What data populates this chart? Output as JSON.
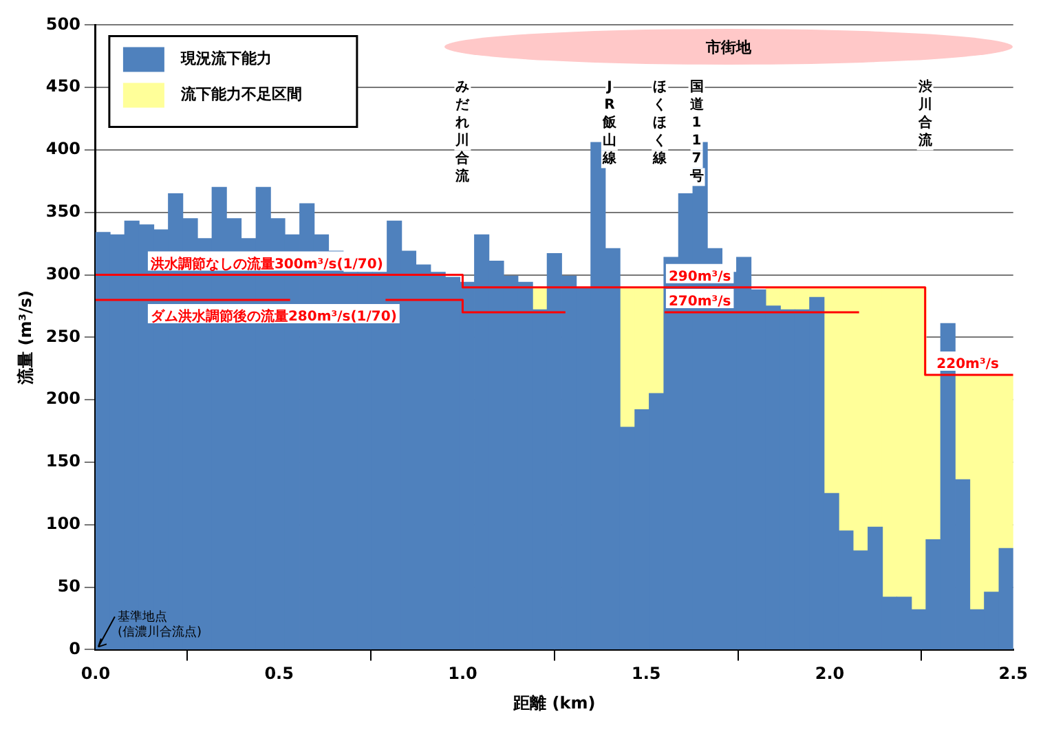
{
  "chart_data": {
    "type": "bar",
    "xlabel": "距離 (km)",
    "ylabel": "流量 (m³/s)",
    "x": [
      0.02,
      0.06,
      0.099,
      0.139,
      0.179,
      0.218,
      0.258,
      0.298,
      0.337,
      0.377,
      0.417,
      0.457,
      0.496,
      0.536,
      0.576,
      0.615,
      0.655,
      0.695,
      0.734,
      0.774,
      0.814,
      0.853,
      0.893,
      0.933,
      0.973,
      1.012,
      1.052,
      1.092,
      1.131,
      1.171,
      1.211,
      1.25,
      1.29,
      1.33,
      1.369,
      1.409,
      1.449,
      1.489,
      1.528,
      1.568,
      1.608,
      1.647,
      1.687,
      1.727,
      1.766,
      1.806,
      1.846,
      1.885,
      1.925,
      1.965,
      2.005,
      2.044,
      2.084,
      2.124,
      2.163,
      2.203,
      2.243,
      2.282,
      2.322,
      2.362,
      2.401,
      2.441,
      2.481
    ],
    "stacked": true,
    "series": [
      {
        "name": "現況流下能力",
        "color": "#4f81bd",
        "values": [
          334,
          332,
          343,
          340,
          336,
          365,
          345,
          329,
          370,
          345,
          329,
          370,
          345,
          332,
          357,
          332,
          319,
          302,
          302,
          302,
          343,
          319,
          308,
          302,
          298,
          294,
          332,
          311,
          299,
          294,
          272,
          317,
          299,
          289,
          406,
          321,
          178,
          192,
          205,
          314,
          365,
          406,
          321,
          302,
          314,
          288,
          275,
          272,
          272,
          282,
          125,
          95,
          79,
          98,
          42,
          42,
          32,
          88,
          261,
          136,
          32,
          46,
          81
        ]
      },
      {
        "name": "流下能力不足区間",
        "color": "#ffff99",
        "values": [
          null,
          null,
          null,
          null,
          null,
          null,
          null,
          null,
          null,
          null,
          null,
          null,
          null,
          null,
          null,
          null,
          null,
          null,
          null,
          null,
          null,
          null,
          null,
          null,
          null,
          null,
          null,
          null,
          null,
          null,
          18,
          null,
          null,
          null,
          null,
          null,
          112,
          98,
          85,
          null,
          null,
          null,
          null,
          null,
          null,
          null,
          15,
          18,
          18,
          8,
          165,
          195,
          211,
          192,
          248,
          248,
          258,
          132,
          null,
          84,
          188,
          174,
          139
        ]
      },
      {
        "name": "洪水調節なしの流量300m³/s(1/70)",
        "type": "line",
        "color": "#ff0000",
        "x": [
          0,
          1.0,
          1.0,
          2.26,
          2.26,
          2.5
        ],
        "values": [
          300,
          300,
          290,
          290,
          220,
          220
        ]
      },
      {
        "name": "ダム洪水調節後の流量280m³/s(1/70)",
        "type": "line",
        "color": "#ff0000",
        "x": [
          0,
          0.53,
          0.66,
          0.79,
          1.0,
          1.0,
          1.28,
          1.4,
          1.55,
          2.08
        ],
        "values": [
          280,
          280,
          null,
          280,
          280,
          270,
          270,
          null,
          270,
          270
        ]
      }
    ],
    "xlim": [
      0,
      2.5
    ],
    "xticks": [
      {
        "value": 0,
        "label": "0.0"
      },
      0.5,
      {
        "value": 1,
        "label": "1.0"
      },
      1.5,
      {
        "value": 2,
        "label": "2.0"
      },
      2.5
    ],
    "ylim": [
      0,
      500
    ],
    "yticks": [
      0,
      50,
      100,
      150,
      200,
      250,
      300,
      350,
      400,
      450,
      500
    ],
    "grid": "y",
    "legend": "top left",
    "marker": "none",
    "line_style": "solid",
    "annotations": [
      "市街地",
      "みだれ川合流",
      "JR飯山線",
      "ほくほく線",
      "国道117号",
      "渋川合流",
      {
        "text": "290m³/s",
        "x": 1.55,
        "y": 290
      },
      {
        "text": "270m³/s",
        "x": 1.55,
        "y": 270
      },
      {
        "text": "220m³/s",
        "x": 2.28,
        "y": 220
      },
      {
        "text": "基準地点\n(信濃川合流点)",
        "x": 0,
        "y": 0
      }
    ]
  }
}
